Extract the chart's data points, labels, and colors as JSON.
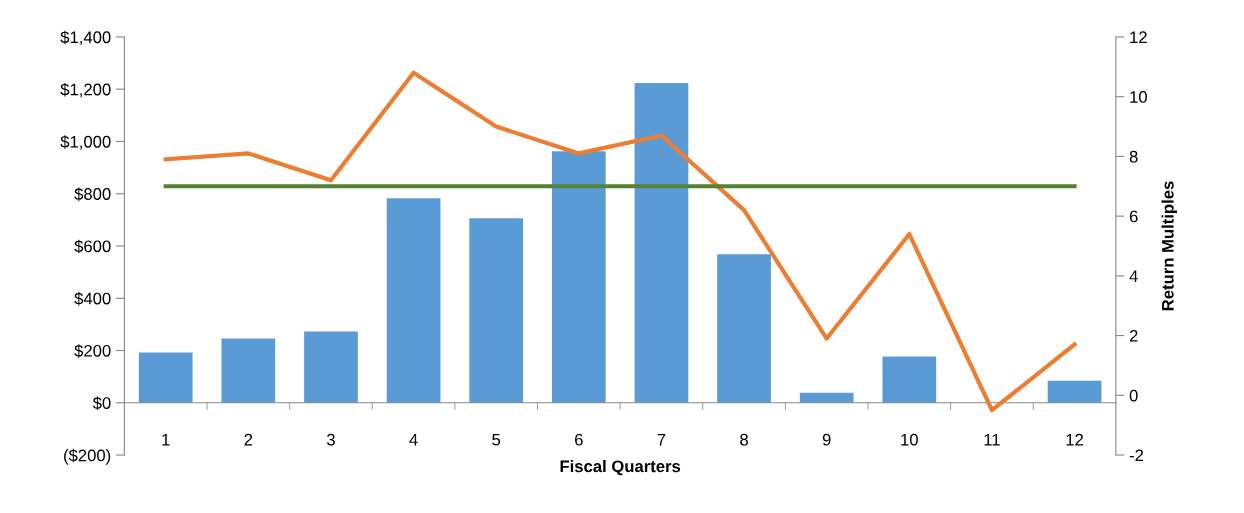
{
  "chart_data": {
    "type": "bar",
    "xlabel": "Fiscal Quarters",
    "y2label": "Return Multiples",
    "categories": [
      "1",
      "2",
      "3",
      "4",
      "5",
      "6",
      "7",
      "8",
      "9",
      "10",
      "11",
      "12"
    ],
    "series": [
      {
        "color": "#5b9bd5",
        "values": [
          192,
          246,
          273,
          783,
          706,
          963,
          1224,
          568,
          38,
          177,
          0,
          84
        ]
      },
      {
        "type": "line",
        "axis": "y2",
        "color": "#ed7d31",
        "values": [
          7.9,
          8.1,
          7.2,
          10.8,
          9.0,
          8.1,
          8.7,
          6.2,
          1.9,
          5.4,
          -0.5,
          1.7
        ]
      },
      {
        "type": "line",
        "axis": "y2",
        "color": "#548235",
        "values": [
          7,
          7,
          7,
          7,
          7,
          7,
          7,
          7,
          7,
          7,
          7,
          7
        ]
      }
    ],
    "ylim": [
      -200,
      1400
    ],
    "yticks": [
      {
        "value": -200,
        "label": "($200)"
      },
      {
        "value": 0,
        "label": "$0"
      },
      {
        "value": 200,
        "label": "$200"
      },
      {
        "value": 400,
        "label": "$400"
      },
      {
        "value": 600,
        "label": "$600"
      },
      {
        "value": 800,
        "label": "$800"
      },
      {
        "value": 1000,
        "label": "$1,000"
      },
      {
        "value": 1200,
        "label": "$1,200"
      },
      {
        "value": 1400,
        "label": "$1,400"
      }
    ],
    "y2lim": [
      -2,
      12
    ],
    "y2ticks": [
      -2,
      0,
      2,
      4,
      6,
      8,
      10,
      12
    ],
    "grid": false,
    "legend": false
  }
}
